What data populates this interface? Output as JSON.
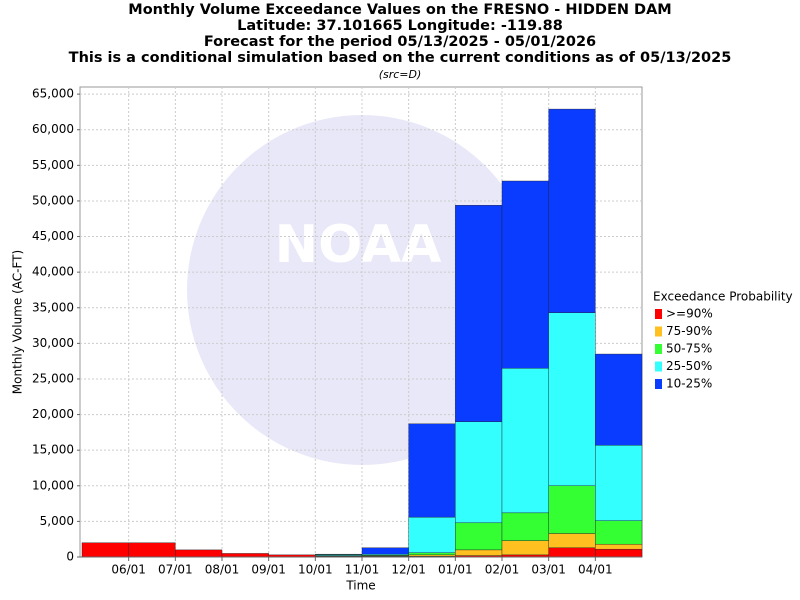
{
  "chart_data": {
    "type": "stacked_bar",
    "title": [
      "Monthly Volume Exceedance Values on the FRESNO - HIDDEN DAM",
      "Latitude: 37.101665 Longitude: -119.88",
      "Forecast for the period 05/13/2025 - 05/01/2026",
      "This is a conditional simulation based on the current conditions as of 05/13/2025"
    ],
    "subtitle": "(src=D)",
    "watermark": "NOAA",
    "x_label": "Time",
    "y_label": "Monthly Volume (AC-FT)",
    "legend_title": "Exceedance Probability",
    "legend_position": "right",
    "grid": true,
    "categories": [
      null,
      "06/01",
      "07/01",
      "08/01",
      "09/01",
      "10/01",
      "11/01",
      "12/01",
      "01/01",
      "02/01",
      "03/01",
      "04/01"
    ],
    "series": [
      {
        "name": ">=90%",
        "color": "#ff0000",
        "values": [
          2000,
          2000,
          1000,
          500,
          300,
          100,
          100,
          100,
          200,
          300,
          1300,
          1100
        ]
      },
      {
        "name": "75-90%",
        "color": "#ffc020",
        "values": [
          0,
          0,
          0,
          0,
          0,
          50,
          50,
          200,
          800,
          2000,
          2000,
          700
        ]
      },
      {
        "name": "50-75%",
        "color": "#33ff33",
        "values": [
          0,
          0,
          0,
          0,
          0,
          50,
          100,
          300,
          3800,
          3900,
          6700,
          3300
        ]
      },
      {
        "name": "25-50%",
        "color": "#33ffff",
        "values": [
          0,
          0,
          0,
          0,
          0,
          150,
          150,
          5000,
          14200,
          20300,
          24300,
          10600
        ]
      },
      {
        "name": "10-25%",
        "color": "#0a3cff",
        "values": [
          0,
          0,
          0,
          0,
          0,
          50,
          900,
          13100,
          30400,
          26300,
          28600,
          12800
        ]
      }
    ],
    "ylim": [
      0,
      66000
    ],
    "yticks": [
      0,
      {
        "value": 5000,
        "label": "5,000"
      },
      {
        "value": 10000,
        "label": "10,000"
      },
      {
        "value": 15000,
        "label": "15,000"
      },
      {
        "value": 20000,
        "label": "20,000"
      },
      {
        "value": 25000,
        "label": "25,000"
      },
      {
        "value": 30000,
        "label": "30,000"
      },
      {
        "value": 35000,
        "label": "35,000"
      },
      {
        "value": 40000,
        "label": "40,000"
      },
      {
        "value": 45000,
        "label": "45,000"
      },
      {
        "value": 50000,
        "label": "50,000"
      },
      {
        "value": 55000,
        "label": "55,000"
      },
      {
        "value": 60000,
        "label": "60,000"
      },
      {
        "value": 65000,
        "label": "65,000"
      }
    ]
  }
}
